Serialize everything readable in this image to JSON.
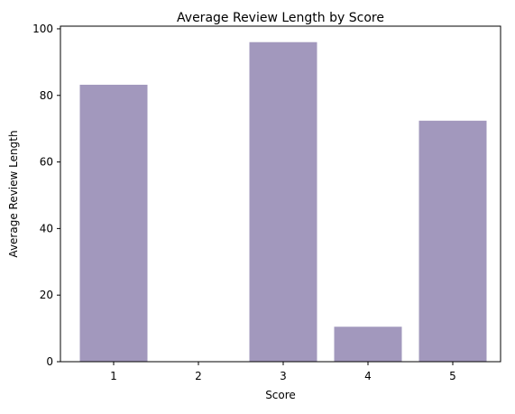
{
  "chart_data": {
    "type": "bar",
    "title": "Average Review Length by Score",
    "xlabel": "Score",
    "ylabel": "Average Review Length",
    "categories": [
      "1",
      "2",
      "3",
      "4",
      "5"
    ],
    "values": [
      83.2,
      0,
      96.0,
      10.5,
      72.4
    ],
    "ylim": [
      0,
      100.8
    ],
    "yticks": [
      0,
      20,
      40,
      60,
      80,
      100
    ],
    "ytick_labels": [
      "0",
      "20",
      "40",
      "60",
      "80",
      "100"
    ],
    "bar_color": "#a298bd",
    "grid": false,
    "legend": "none"
  }
}
